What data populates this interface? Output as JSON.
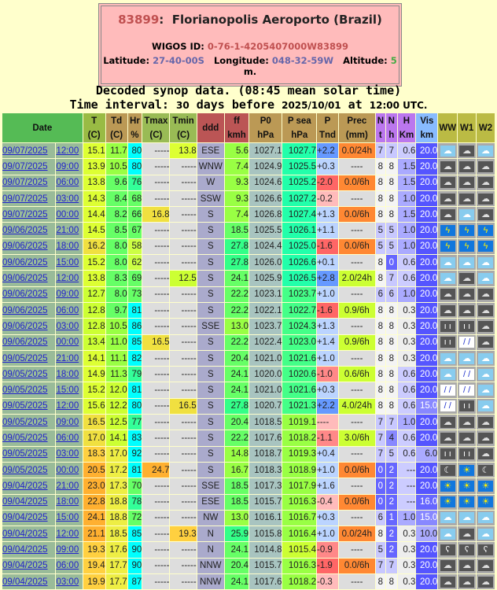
{
  "station": {
    "number": "83899",
    "sep": ":",
    "name": "Florianopolis Aeroporto (Brazil)",
    "wigos_label": "WIGOS ID:",
    "wigos_id": "0-76-1-4205407000W83899",
    "lat_label": "Latitude:",
    "lat": "27-40-00S",
    "lon_label": "Longitude:",
    "lon": "048-32-59W",
    "alt_label": "Altitude:",
    "alt": "5",
    "alt_unit": "m."
  },
  "subtitle": {
    "line1": "Decoded synop data. (08:45 mean solar time)",
    "l2a": "Time interval: ",
    "days": "30",
    "l2b": " days before ",
    "date": "2025/10/01",
    "l2c": " at ",
    "time": "12:00",
    "l2d": " UTC."
  },
  "columns": [
    [
      "Date",
      ""
    ],
    [
      "T",
      "(C)"
    ],
    [
      "Td",
      "(C)"
    ],
    [
      "Hr",
      "%"
    ],
    [
      "Tmax",
      "(C)"
    ],
    [
      "Tmin",
      "(C)"
    ],
    [
      "ddd",
      ""
    ],
    [
      "ff",
      "kmh"
    ],
    [
      "P0",
      "hPa"
    ],
    [
      "P sea",
      "hPa"
    ],
    [
      "P",
      "Tnd"
    ],
    [
      "Prec",
      "(mm)"
    ],
    [
      "N",
      "t"
    ],
    [
      "N",
      "h"
    ],
    [
      "H",
      "Km"
    ],
    [
      "Vis",
      "km"
    ],
    [
      "WW",
      ""
    ],
    [
      "W1",
      ""
    ],
    [
      "W2",
      ""
    ]
  ],
  "header_colors": [
    "#55bb55",
    "#99bb44",
    "#bb9955",
    "#bb9955",
    "#99bb55",
    "#99bb55",
    "#bb5555",
    "#bb5555",
    "#bb9955",
    "#bb9955",
    "#bb9955",
    "#bb9955",
    "#bb77ee",
    "#bb77ee",
    "#bb77ee",
    "#88bbff",
    "#bbbb44",
    "#bbbb44",
    "#bbbb44"
  ],
  "rows": [
    [
      "09/07/2025",
      "12:00",
      "15.1",
      "11.7",
      "80",
      "-----",
      "13.8",
      "ESE",
      "5.6",
      "1027.1",
      "1027.7",
      "+2.2",
      "0.0/24h",
      "7",
      "7",
      "0.6",
      "20.0",
      "cloud-light",
      "cloud-dark",
      "cloud-light"
    ],
    [
      "09/07/2025",
      "09:00",
      "13.9",
      "10.5",
      "80",
      "-----",
      "-----",
      "WNW",
      "7.4",
      "1024.9",
      "1025.5",
      "+0.3",
      "----",
      "8",
      "8",
      "1.5",
      "20.0",
      "cloud-dark",
      "cloud-dark",
      "cloud-dark"
    ],
    [
      "09/07/2025",
      "06:00",
      "13.8",
      "9.6",
      "76",
      "-----",
      "-----",
      "W",
      "9.3",
      "1024.6",
      "1025.2",
      "-2.0",
      "0.0/6h",
      "8",
      "8",
      "1.5",
      "20.0",
      "cloud-dark",
      "cloud-dark",
      "cloud-dark"
    ],
    [
      "09/07/2025",
      "03:00",
      "14.3",
      "8.4",
      "68",
      "-----",
      "-----",
      "SSW",
      "9.3",
      "1026.6",
      "1027.2",
      "-0.2",
      "----",
      "8",
      "8",
      "1.0",
      "20.0",
      "cloud-dark",
      "cloud-dark",
      "cloud-dark"
    ],
    [
      "09/07/2025",
      "00:00",
      "14.4",
      "8.2",
      "66",
      "16.8",
      "-----",
      "S",
      "7.4",
      "1026.8",
      "1027.4",
      "+1.3",
      "0.0/6h",
      "8",
      "8",
      "1.5",
      "20.0",
      "cloud-dark",
      "cloud-light",
      "cloud-dark"
    ],
    [
      "09/06/2025",
      "21:00",
      "14.5",
      "8.5",
      "67",
      "-----",
      "-----",
      "S",
      "18.5",
      "1025.5",
      "1026.1",
      "+1.1",
      "----",
      "5",
      "5",
      "1.0",
      "20.0",
      "thunder",
      "thunder",
      "thunder"
    ],
    [
      "09/06/2025",
      "18:00",
      "16.2",
      "8.0",
      "58",
      "-----",
      "-----",
      "S",
      "27.8",
      "1024.4",
      "1025.0",
      "-1.6",
      "0.0/6h",
      "5",
      "5",
      "1.0",
      "20.0",
      "thunder",
      "thunder",
      "thunder"
    ],
    [
      "09/06/2025",
      "15:00",
      "15.2",
      "8.0",
      "62",
      "-----",
      "-----",
      "S",
      "27.8",
      "1026.0",
      "1026.6",
      "+0.1",
      "----",
      "8",
      "0",
      "0.6",
      "20.0",
      "cloud-light",
      "cloud-light",
      "cloud-light"
    ],
    [
      "09/06/2025",
      "12:00",
      "13.8",
      "8.3",
      "69",
      "-----",
      "12.5",
      "S",
      "24.1",
      "1025.9",
      "1026.5",
      "+2.8",
      "2.0/24h",
      "8",
      "7",
      "0.6",
      "20.0",
      "cloud-light",
      "cloud-dark",
      "cloud-light"
    ],
    [
      "09/06/2025",
      "09:00",
      "12.7",
      "8.0",
      "73",
      "-----",
      "-----",
      "S",
      "22.2",
      "1023.1",
      "1023.7",
      "+1.0",
      "----",
      "6",
      "6",
      "1.0",
      "20.0",
      "cloud-dark",
      "cloud-dark",
      "cloud-dark"
    ],
    [
      "09/06/2025",
      "06:00",
      "12.8",
      "9.7",
      "81",
      "-----",
      "-----",
      "S",
      "22.2",
      "1022.1",
      "1022.7",
      "-1.6",
      "0.9/6h",
      "8",
      "8",
      "0.3",
      "20.0",
      "cloud-dark",
      "cloud-dark",
      "cloud-dark"
    ],
    [
      "09/06/2025",
      "03:00",
      "12.8",
      "10.5",
      "86",
      "-----",
      "-----",
      "SSE",
      "13.0",
      "1023.7",
      "1024.3",
      "+1.3",
      "----",
      "8",
      "8",
      "0.3",
      "20.0",
      "drizzle",
      "drizzle",
      "cloud-dark"
    ],
    [
      "09/06/2025",
      "00:00",
      "13.4",
      "11.0",
      "85",
      "16.5",
      "-----",
      "S",
      "22.2",
      "1022.4",
      "1023.0",
      "+1.4",
      "0.9/6h",
      "8",
      "8",
      "0.3",
      "20.0",
      "drizzle",
      "rain",
      "cloud-dark"
    ],
    [
      "09/05/2025",
      "21:00",
      "14.1",
      "11.1",
      "82",
      "-----",
      "-----",
      "S",
      "20.4",
      "1021.0",
      "1021.6",
      "+1.0",
      "----",
      "8",
      "8",
      "0.3",
      "20.0",
      "cloud-light",
      "cloud-light",
      "cloud-light"
    ],
    [
      "09/05/2025",
      "18:00",
      "14.9",
      "11.3",
      "79",
      "-----",
      "-----",
      "S",
      "24.1",
      "1020.0",
      "1020.6",
      "-1.0",
      "0.6/6h",
      "8",
      "8",
      "0.6",
      "20.0",
      "cloud-light",
      "rain",
      "cloud-light"
    ],
    [
      "09/05/2025",
      "15:00",
      "15.2",
      "12.0",
      "81",
      "-----",
      "-----",
      "S",
      "24.1",
      "1021.0",
      "1021.6",
      "+0.3",
      "----",
      "8",
      "8",
      "0.6",
      "20.0",
      "rain",
      "rain",
      "cloud-light"
    ],
    [
      "09/05/2025",
      "12:00",
      "15.6",
      "12.2",
      "80",
      "-----",
      "16.5",
      "S",
      "27.8",
      "1020.7",
      "1021.3",
      "+2.2",
      "4.0/24h",
      "8",
      "8",
      "0.6",
      "15.0",
      "rain",
      "drizzle",
      "cloud-light"
    ],
    [
      "09/05/2025",
      "09:00",
      "16.5",
      "12.5",
      "77",
      "-----",
      "-----",
      "S",
      "20.4",
      "1018.5",
      "1019.1",
      "----",
      "----",
      "7",
      "7",
      "1.0",
      "20.0",
      "cloud-dark",
      "cloud-dark",
      "cloud-dark"
    ],
    [
      "09/05/2025",
      "06:00",
      "17.0",
      "14.1",
      "83",
      "-----",
      "-----",
      "S",
      "22.2",
      "1017.6",
      "1018.2",
      "-1.1",
      "3.0/6h",
      "7",
      "4",
      "0.6",
      "20.0",
      "cloud-dark",
      "cloud-dark",
      "cloud-dark"
    ],
    [
      "09/05/2025",
      "03:00",
      "18.3",
      "17.0",
      "92",
      "-----",
      "-----",
      "S",
      "14.8",
      "1018.7",
      "1019.3",
      "+0.4",
      "----",
      "7",
      "5",
      "0.6",
      "6.0",
      "drizzle",
      "drizzle",
      "cloud-dark"
    ],
    [
      "09/05/2025",
      "00:00",
      "20.5",
      "17.2",
      "81",
      "24.7",
      "-----",
      "S",
      "16.7",
      "1018.3",
      "1018.9",
      "+1.0",
      "0.0/6h",
      "0",
      "2",
      "---",
      "20.0",
      "moon",
      "sun",
      "moon"
    ],
    [
      "09/04/2025",
      "21:00",
      "23.0",
      "17.3",
      "70",
      "-----",
      "-----",
      "SSE",
      "18.5",
      "1017.3",
      "1017.9",
      "+1.6",
      "----",
      "0",
      "2",
      "---",
      "20.0",
      "sun",
      "sun",
      "sun"
    ],
    [
      "09/04/2025",
      "18:00",
      "22.8",
      "18.8",
      "78",
      "-----",
      "-----",
      "ESE",
      "18.5",
      "1015.7",
      "1016.3",
      "-0.4",
      "0.0/6h",
      "0",
      "2",
      "---",
      "16.0",
      "sun",
      "sun",
      "sun"
    ],
    [
      "09/04/2025",
      "15:00",
      "24.1",
      "18.8",
      "72",
      "-----",
      "-----",
      "NW",
      "13.0",
      "1016.1",
      "1016.7",
      "+0.3",
      "----",
      "6",
      "1",
      "1.0",
      "15.0",
      "cloud-light",
      "cloud-light",
      "cloud-light"
    ],
    [
      "09/04/2025",
      "12:00",
      "21.1",
      "18.5",
      "85",
      "-----",
      "19.3",
      "N",
      "25.9",
      "1015.8",
      "1016.4",
      "+1.0",
      "0.0/24h",
      "8",
      "2",
      "0.3",
      "10.0",
      "cloud-light",
      "cloud-dark",
      "cloud-light"
    ],
    [
      "09/04/2025",
      "09:00",
      "19.3",
      "17.6",
      "90",
      "-----",
      "-----",
      "N",
      "24.1",
      "1014.8",
      "1015.4",
      "-0.9",
      "----",
      "5",
      "2",
      "0.3",
      "20.0",
      "squall",
      "squall",
      "squall"
    ],
    [
      "09/04/2025",
      "06:00",
      "19.4",
      "17.7",
      "90",
      "-----",
      "-----",
      "NNW",
      "20.4",
      "1015.7",
      "1016.3",
      "-1.9",
      "0.0/6h",
      "7",
      "7",
      "0.3",
      "20.0",
      "cloud-dark",
      "cloud-dark",
      "cloud-dark"
    ],
    [
      "09/04/2025",
      "03:00",
      "19.9",
      "17.7",
      "87",
      "-----",
      "-----",
      "NNW",
      "24.1",
      "1017.6",
      "1018.2",
      "-0.3",
      "----",
      "8",
      "8",
      "0.3",
      "20.0",
      "cloud-dark",
      "cloud-dark",
      "cloud-dark"
    ]
  ]
}
